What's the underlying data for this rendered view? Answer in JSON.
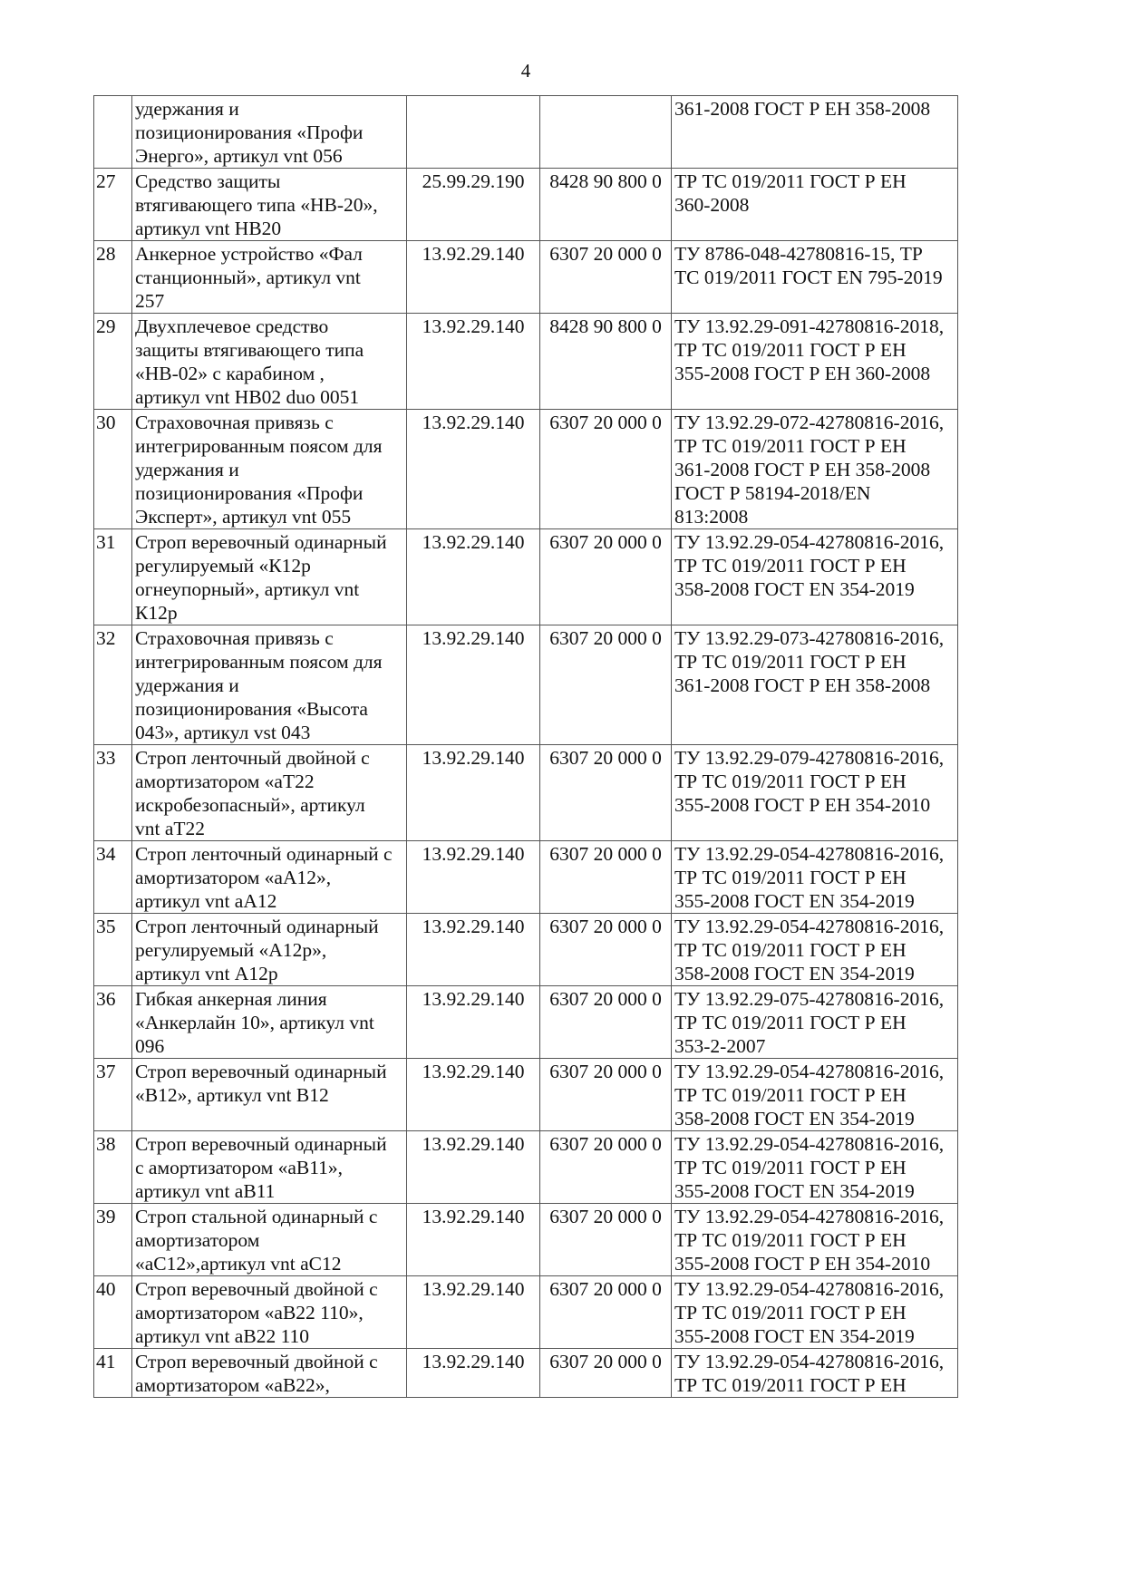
{
  "page_number": "4",
  "rows": [
    {
      "n": "",
      "name": "удержания и\nпозиционирования «Профи\nЭнерго», артикул vnt 056",
      "okpd": "",
      "tnved": "",
      "docs": "361-2008 ГОСТ Р ЕН 358-2008"
    },
    {
      "n": "27",
      "name": "Средство защиты\nвтягивающего типа «НВ-20»,\nартикул vnt НВ20",
      "okpd": "25.99.29.190",
      "tnved": "8428 90 800 0",
      "docs": "ТР ТС 019/2011 ГОСТ Р ЕН\n360-2008"
    },
    {
      "n": "28",
      "name": "Анкерное устройство «Фал\nстанционный», артикул vnt\n257",
      "okpd": "13.92.29.140",
      "tnved": "6307 20 000 0",
      "docs": "ТУ 8786-048-42780816-15, ТР\nТС 019/2011 ГОСТ EN 795-2019"
    },
    {
      "n": "29",
      "name": "Двухплечевое средство\nзащиты втягивающего типа\n«НВ-02» с карабином ,\nартикул vnt НВ02 duo 0051",
      "okpd": "13.92.29.140",
      "tnved": "8428 90 800 0",
      "docs": "ТУ 13.92.29-091-42780816-2018,\nТР ТС 019/2011 ГОСТ Р ЕН\n355-2008 ГОСТ Р ЕН 360-2008"
    },
    {
      "n": "30",
      "name": "Страховочная привязь с\nинтегрированным поясом для\nудержания и\nпозиционирования «Профи\nЭксперт», артикул vnt 055",
      "okpd": "13.92.29.140",
      "tnved": "6307 20 000 0",
      "docs": "ТУ 13.92.29-072-42780816-2016,\nТР ТС 019/2011 ГОСТ Р ЕН\n361-2008 ГОСТ Р ЕН 358-2008\nГОСТ Р 58194-2018/EN\n813:2008"
    },
    {
      "n": "31",
      "name": "Строп веревочный одинарный\nрегулируемый «К12р\nогнеупорный», артикул vnt\nК12р",
      "okpd": "13.92.29.140",
      "tnved": "6307 20 000 0",
      "docs": "ТУ 13.92.29-054-42780816-2016,\nТР ТС 019/2011 ГОСТ Р ЕН\n358-2008 ГОСТ  EN 354-2019"
    },
    {
      "n": "32",
      "name": "Страховочная привязь с\nинтегрированным поясом для\nудержания и\nпозиционирования «Высота\n043», артикул vst 043",
      "okpd": "13.92.29.140",
      "tnved": "6307 20 000 0",
      "docs": "ТУ 13.92.29-073-42780816-2016,\nТР ТС 019/2011 ГОСТ Р ЕН\n361-2008  ГОСТ Р ЕН 358-2008"
    },
    {
      "n": "33",
      "name": "Строп ленточный двойной  с\nамортизатором  «аТ22\nискробезопасный», артикул\nvnt аТ22",
      "okpd": "13.92.29.140",
      "tnved": "6307 20 000 0",
      "docs": "ТУ 13.92.29-079-42780816-2016,\nТР ТС 019/2011 ГОСТ Р ЕН\n355-2008 ГОСТ Р ЕН 354-2010"
    },
    {
      "n": "34",
      "name": "Строп ленточный одинарный с\nамортизатором «аА12»,\nартикул vnt аА12",
      "okpd": "13.92.29.140",
      "tnved": "6307 20 000 0",
      "docs": "ТУ 13.92.29-054-42780816-2016,\nТР ТС 019/2011 ГОСТ Р ЕН\n355-2008 ГОСТ EN 354-2019"
    },
    {
      "n": "35",
      "name": "Строп ленточный одинарный\nрегулируемый «А12р»,\nартикул vnt А12р",
      "okpd": "13.92.29.140",
      "tnved": "6307 20 000 0",
      "docs": "ТУ 13.92.29-054-42780816-2016,\nТР ТС 019/2011 ГОСТ Р ЕН\n358-2008 ГОСТ  EN 354-2019"
    },
    {
      "n": "36",
      "name": "Гибкая анкерная линия\n«Анкерлайн 10», артикул vnt\n096",
      "okpd": "13.92.29.140",
      "tnved": "6307 20 000 0",
      "docs": "ТУ 13.92.29-075-42780816-2016,\nТР ТС 019/2011 ГОСТ Р ЕН\n353-2-2007"
    },
    {
      "n": "37",
      "name": "Строп веревочный одинарный\n«В12», артикул vnt В12",
      "okpd": "13.92.29.140",
      "tnved": "6307 20 000 0",
      "docs": "ТУ 13.92.29-054-42780816-2016,\nТР ТС 019/2011 ГОСТ Р ЕН\n358-2008 ГОСТ  EN 354-2019"
    },
    {
      "n": "38",
      "name": "Строп веревочный одинарный\nс амортизатором «аВ11»,\nартикул vnt аВ11",
      "okpd": "13.92.29.140",
      "tnved": "6307 20 000 0",
      "docs": "ТУ 13.92.29-054-42780816-2016,\nТР ТС 019/2011 ГОСТ Р ЕН\n355-2008 ГОСТ  EN 354-2019"
    },
    {
      "n": "39",
      "name": "Строп стальной одинарный с\nамортизатором\n«аС12»,артикул vnt аС12",
      "okpd": "13.92.29.140",
      "tnved": "6307 20 000 0",
      "docs": "ТУ 13.92.29-054-42780816-2016,\nТР ТС 019/2011 ГОСТ Р ЕН\n355-2008 ГОСТ Р ЕН 354-2010"
    },
    {
      "n": "40",
      "name": "Строп веревочный двойной  с\nамортизатором «аВ22 110»,\nартикул vnt аВ22 110",
      "okpd": "13.92.29.140",
      "tnved": "6307 20 000 0",
      "docs": "ТУ 13.92.29-054-42780816-2016,\nТР ТС 019/2011 ГОСТ Р ЕН\n355-2008 ГОСТ  EN 354-2019"
    },
    {
      "n": "41",
      "name": "Строп веревочный двойной с\nамортизатором «аВ22»,",
      "okpd": "13.92.29.140",
      "tnved": "6307 20 000 0",
      "docs": "ТУ 13.92.29-054-42780816-2016,\nТР ТС 019/2011 ГОСТ Р ЕН"
    }
  ]
}
